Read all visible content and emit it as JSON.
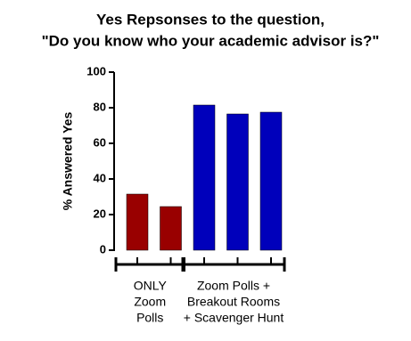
{
  "chart_data": {
    "type": "bar",
    "title_lines": [
      "Yes Repsonses to the question,",
      "\"Do you know who your academic advisor is?\""
    ],
    "y_label": "% Answered Yes",
    "groups": [
      {
        "lines": [
          "ONLY",
          "Zoom",
          "Polls"
        ],
        "color": "#990000",
        "values": [
          31.5,
          24.5
        ]
      },
      {
        "lines": [
          "Zoom Polls +",
          "Breakout Rooms",
          "+ Scavenger Hunt"
        ],
        "color": "#0000bb",
        "values": [
          81.5,
          76.5,
          77.5
        ]
      }
    ],
    "ylim": [
      0,
      100
    ],
    "yticks": [
      0,
      20,
      40,
      60,
      80,
      100
    ]
  }
}
